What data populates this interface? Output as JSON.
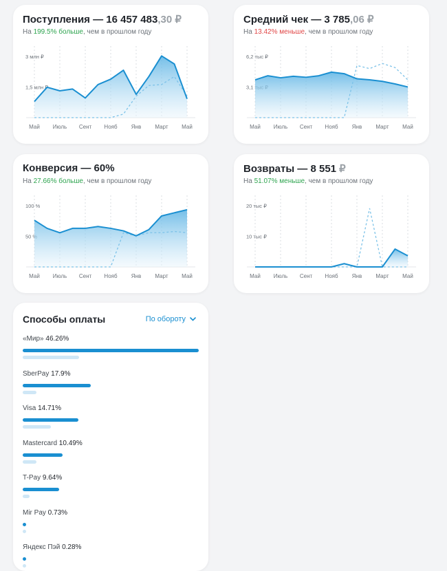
{
  "months": [
    "Май",
    "Июль",
    "Сент",
    "Нояб",
    "Янв",
    "Март",
    "Май"
  ],
  "colors": {
    "accent": "#1a8fd1",
    "accent_fill_top": "#5bb3e4",
    "accent_fill_bottom": "#eaf5fc",
    "positive": "#2ea44f",
    "negative": "#e04646"
  },
  "revenue": {
    "title": "Поступления — 16 457 483",
    "title_muted": ",30 ₽",
    "sub_prefix": "На ",
    "delta": "199.5% больше",
    "sub_suffix": ", чем в прошлом году",
    "y_ticks": [
      "3 млн ₽",
      "1,5 млн ₽"
    ]
  },
  "avg_check": {
    "title": "Средний чек — 3 785",
    "title_muted": ",06 ₽",
    "sub_prefix": "На ",
    "delta": "13.42% меньше",
    "sub_suffix": ", чем в прошлом году",
    "y_ticks": [
      "6,2 тыс ₽",
      "3,1 тыс ₽"
    ]
  },
  "conversion": {
    "title": "Конверсия — 60%",
    "sub_prefix": "На ",
    "delta": "27.66% больше",
    "sub_suffix": ", чем в прошлом году",
    "y_ticks": [
      "100 %",
      "50 %"
    ]
  },
  "returns": {
    "title": "Возвраты — 8 551",
    "title_muted": " ₽",
    "sub_prefix": "На ",
    "delta": "51.07% меньше",
    "sub_suffix": ", чем в прошлом году",
    "y_ticks": [
      "20 тыс ₽",
      "10 тыс ₽"
    ]
  },
  "chart_data": [
    {
      "type": "area",
      "title": "Поступления — 16 457 483,30 ₽",
      "x": [
        "Май",
        "",
        "Июль",
        "",
        "Сент",
        "",
        "Нояб",
        "",
        "Янв",
        "",
        "Март",
        "",
        "Май"
      ],
      "ylim": [
        0,
        4000000
      ],
      "series": [
        {
          "values": [
            900000,
            1700000,
            1500000,
            1600000,
            1100000,
            1850000,
            2150000,
            2650000,
            1300000,
            2300000,
            3450000,
            3000000,
            1050000
          ]
        },
        {
          "values": [
            0,
            0,
            0,
            0,
            0,
            0,
            0,
            200000,
            1200000,
            1800000,
            1850000,
            2300000,
            1200000
          ]
        }
      ]
    },
    {
      "type": "area",
      "title": "Средний чек — 3 785,06 ₽",
      "x": [
        "Май",
        "",
        "Июль",
        "",
        "Сент",
        "",
        "Нояб",
        "",
        "Янв",
        "",
        "Март",
        "",
        "Май"
      ],
      "ylim": [
        0,
        7000
      ],
      "series": [
        {
          "values": [
            3700,
            4100,
            3900,
            4050,
            3950,
            4100,
            4450,
            4300,
            3800,
            3700,
            3550,
            3300,
            3000
          ]
        },
        {
          "values": [
            0,
            0,
            0,
            0,
            0,
            0,
            0,
            0,
            5100,
            4800,
            5300,
            4900,
            3700
          ]
        }
      ]
    },
    {
      "type": "area",
      "title": "Конверсия — 60%",
      "x": [
        "Май",
        "",
        "Июль",
        "",
        "Сент",
        "",
        "Нояб",
        "",
        "Янв",
        "",
        "Март",
        "",
        "Май"
      ],
      "ylim": [
        0,
        115
      ],
      "series": [
        {
          "values": [
            75,
            62,
            55,
            62,
            62,
            65,
            62,
            58,
            50,
            60,
            82,
            87,
            92
          ]
        },
        {
          "values": [
            0,
            0,
            0,
            0,
            0,
            0,
            0,
            55,
            50,
            55,
            55,
            57,
            55
          ]
        }
      ]
    },
    {
      "type": "area",
      "title": "Возвраты — 8 551 ₽",
      "x": [
        "Май",
        "",
        "Июль",
        "",
        "Сент",
        "",
        "Нояб",
        "",
        "Янв",
        "",
        "Март",
        "",
        "Май"
      ],
      "ylim": [
        0,
        22000
      ],
      "series": [
        {
          "values": [
            0,
            0,
            0,
            0,
            0,
            0,
            0,
            1000,
            0,
            0,
            0,
            5500,
            3400
          ]
        },
        {
          "values": [
            0,
            0,
            0,
            0,
            0,
            0,
            0,
            0,
            0,
            18000,
            0,
            0,
            0
          ]
        }
      ]
    }
  ],
  "payments": {
    "title": "Способы оплаты",
    "sort_label": "По обороту",
    "items": [
      {
        "name": "«Мир»",
        "percent": "46.26%",
        "value": 46.26,
        "prev": 14.8
      },
      {
        "name": "SberPay",
        "percent": "17.9%",
        "value": 17.9,
        "prev": 3.7
      },
      {
        "name": "Visa",
        "percent": "14.71%",
        "value": 14.71,
        "prev": 7.4
      },
      {
        "name": "Mastercard",
        "percent": "10.49%",
        "value": 10.49,
        "prev": 3.7
      },
      {
        "name": "T-Pay",
        "percent": "9.64%",
        "value": 9.64,
        "prev": 1.8
      },
      {
        "name": "Mir Pay",
        "percent": "0.73%",
        "value": 0.73,
        "prev": 0.7
      },
      {
        "name": "Яндекс Пэй",
        "percent": "0.28%",
        "value": 0.28,
        "prev": 0.3
      }
    ]
  }
}
